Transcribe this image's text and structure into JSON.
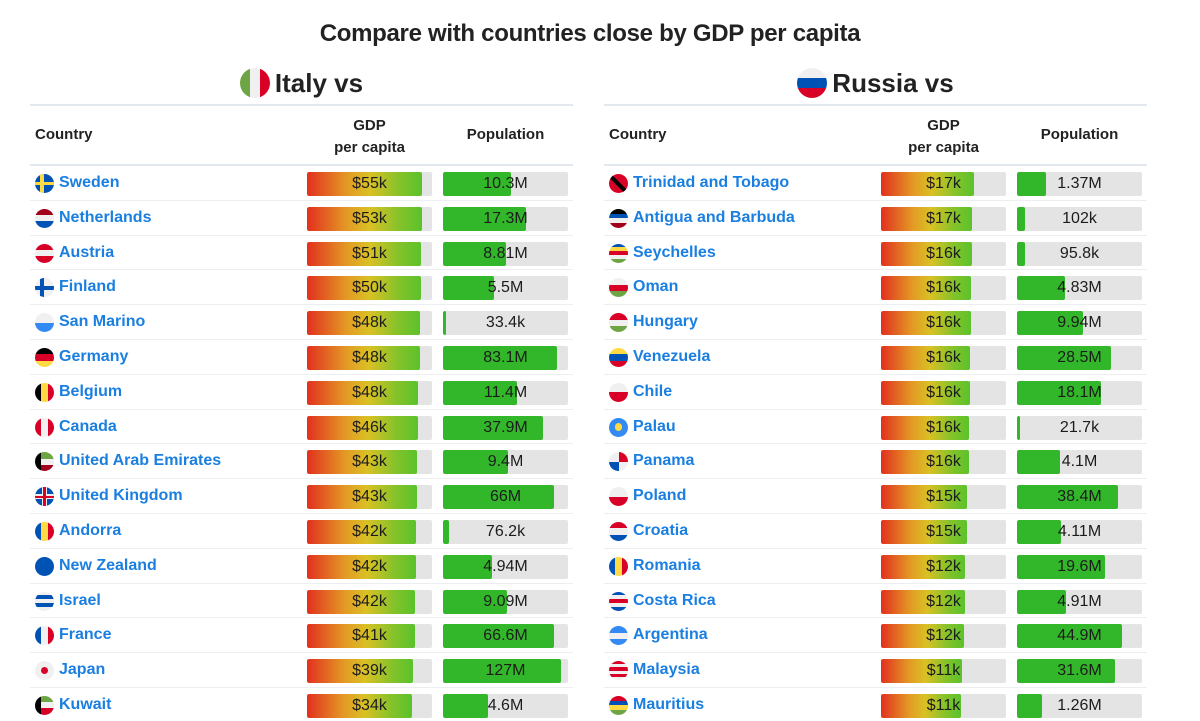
{
  "title": "Compare with countries close by GDP per capita",
  "columns": {
    "country": "Country",
    "gdp_line1": "GDP",
    "gdp_line2": "per capita",
    "population": "Population"
  },
  "chart_data": [
    {
      "type": "table",
      "title": "Italy vs",
      "flag": "italy-flag-icon",
      "columns": [
        "Country",
        "GDP per capita",
        "Population"
      ],
      "rows": [
        {
          "country": "Sweden",
          "flag": "sweden-flag-icon",
          "gdp": "$55k",
          "gdp_fill": 0.92,
          "population": "10.3M",
          "pop_fill": 0.54
        },
        {
          "country": "Netherlands",
          "flag": "netherlands-flag-icon",
          "gdp": "$53k",
          "gdp_fill": 0.92,
          "population": "17.3M",
          "pop_fill": 0.66
        },
        {
          "country": "Austria",
          "flag": "austria-flag-icon",
          "gdp": "$51k",
          "gdp_fill": 0.91,
          "population": "8.81M",
          "pop_fill": 0.5
        },
        {
          "country": "Finland",
          "flag": "finland-flag-icon",
          "gdp": "$50k",
          "gdp_fill": 0.91,
          "population": "5.5M",
          "pop_fill": 0.41
        },
        {
          "country": "San Marino",
          "flag": "san-marino-flag-icon",
          "gdp": "$48k",
          "gdp_fill": 0.9,
          "population": "33.4k",
          "pop_fill": 0.02
        },
        {
          "country": "Germany",
          "flag": "germany-flag-icon",
          "gdp": "$48k",
          "gdp_fill": 0.9,
          "population": "83.1M",
          "pop_fill": 0.91
        },
        {
          "country": "Belgium",
          "flag": "belgium-flag-icon",
          "gdp": "$48k",
          "gdp_fill": 0.89,
          "population": "11.4M",
          "pop_fill": 0.59
        },
        {
          "country": "Canada",
          "flag": "canada-flag-icon",
          "gdp": "$46k",
          "gdp_fill": 0.89,
          "population": "37.9M",
          "pop_fill": 0.8
        },
        {
          "country": "United Arab Emirates",
          "flag": "uae-flag-icon",
          "gdp": "$43k",
          "gdp_fill": 0.88,
          "population": "9.4M",
          "pop_fill": 0.52
        },
        {
          "country": "United Kingdom",
          "flag": "united-kingdom-flag-icon",
          "gdp": "$43k",
          "gdp_fill": 0.88,
          "population": "66M",
          "pop_fill": 0.89
        },
        {
          "country": "Andorra",
          "flag": "andorra-flag-icon",
          "gdp": "$42k",
          "gdp_fill": 0.87,
          "population": "76.2k",
          "pop_fill": 0.05
        },
        {
          "country": "New Zealand",
          "flag": "new-zealand-flag-icon",
          "gdp": "$42k",
          "gdp_fill": 0.87,
          "population": "4.94M",
          "pop_fill": 0.39
        },
        {
          "country": "Israel",
          "flag": "israel-flag-icon",
          "gdp": "$42k",
          "gdp_fill": 0.86,
          "population": "9.09M",
          "pop_fill": 0.51
        },
        {
          "country": "France",
          "flag": "france-flag-icon",
          "gdp": "$41k",
          "gdp_fill": 0.86,
          "population": "66.6M",
          "pop_fill": 0.89
        },
        {
          "country": "Japan",
          "flag": "japan-flag-icon",
          "gdp": "$39k",
          "gdp_fill": 0.85,
          "population": "127M",
          "pop_fill": 0.94
        },
        {
          "country": "Kuwait",
          "flag": "kuwait-flag-icon",
          "gdp": "$34k",
          "gdp_fill": 0.84,
          "population": "4.6M",
          "pop_fill": 0.36
        }
      ]
    },
    {
      "type": "table",
      "title": "Russia vs",
      "flag": "russia-flag-icon",
      "columns": [
        "Country",
        "GDP per capita",
        "Population"
      ],
      "rows": [
        {
          "country": "Trinidad and Tobago",
          "flag": "trinidad-and-tobago-flag-icon",
          "gdp": "$17k",
          "gdp_fill": 0.74,
          "population": "1.37M",
          "pop_fill": 0.23
        },
        {
          "country": "Antigua and Barbuda",
          "flag": "antigua-and-barbuda-flag-icon",
          "gdp": "$17k",
          "gdp_fill": 0.73,
          "population": "102k",
          "pop_fill": 0.06
        },
        {
          "country": "Seychelles",
          "flag": "seychelles-flag-icon",
          "gdp": "$16k",
          "gdp_fill": 0.73,
          "population": "95.8k",
          "pop_fill": 0.06
        },
        {
          "country": "Oman",
          "flag": "oman-flag-icon",
          "gdp": "$16k",
          "gdp_fill": 0.72,
          "population": "4.83M",
          "pop_fill": 0.38
        },
        {
          "country": "Hungary",
          "flag": "hungary-flag-icon",
          "gdp": "$16k",
          "gdp_fill": 0.72,
          "population": "9.94M",
          "pop_fill": 0.53
        },
        {
          "country": "Venezuela",
          "flag": "venezuela-flag-icon",
          "gdp": "$16k",
          "gdp_fill": 0.71,
          "population": "28.5M",
          "pop_fill": 0.75
        },
        {
          "country": "Chile",
          "flag": "chile-flag-icon",
          "gdp": "$16k",
          "gdp_fill": 0.71,
          "population": "18.1M",
          "pop_fill": 0.67
        },
        {
          "country": "Palau",
          "flag": "palau-flag-icon",
          "gdp": "$16k",
          "gdp_fill": 0.7,
          "population": "21.7k",
          "pop_fill": 0.02
        },
        {
          "country": "Panama",
          "flag": "panama-flag-icon",
          "gdp": "$16k",
          "gdp_fill": 0.7,
          "population": "4.1M",
          "pop_fill": 0.34
        },
        {
          "country": "Poland",
          "flag": "poland-flag-icon",
          "gdp": "$15k",
          "gdp_fill": 0.69,
          "population": "38.4M",
          "pop_fill": 0.81
        },
        {
          "country": "Croatia",
          "flag": "croatia-flag-icon",
          "gdp": "$15k",
          "gdp_fill": 0.69,
          "population": "4.11M",
          "pop_fill": 0.35
        },
        {
          "country": "Romania",
          "flag": "romania-flag-icon",
          "gdp": "$12k",
          "gdp_fill": 0.67,
          "population": "19.6M",
          "pop_fill": 0.7
        },
        {
          "country": "Costa Rica",
          "flag": "costa-rica-flag-icon",
          "gdp": "$12k",
          "gdp_fill": 0.67,
          "population": "4.91M",
          "pop_fill": 0.39
        },
        {
          "country": "Argentina",
          "flag": "argentina-flag-icon",
          "gdp": "$12k",
          "gdp_fill": 0.66,
          "population": "44.9M",
          "pop_fill": 0.84
        },
        {
          "country": "Malaysia",
          "flag": "malaysia-flag-icon",
          "gdp": "$11k",
          "gdp_fill": 0.65,
          "population": "31.6M",
          "pop_fill": 0.78
        },
        {
          "country": "Mauritius",
          "flag": "mauritius-flag-icon",
          "gdp": "$11k",
          "gdp_fill": 0.64,
          "population": "1.26M",
          "pop_fill": 0.2
        }
      ]
    }
  ],
  "flags": {
    "italy-flag-icon": {
      "dir": "v",
      "colors": [
        "#6da544",
        "#f0f0f0",
        "#d80027"
      ]
    },
    "russia-flag-icon": {
      "dir": "h",
      "colors": [
        "#f0f0f0",
        "#0052b4",
        "#d80027"
      ]
    },
    "sweden-flag-icon": {
      "dir": "cross",
      "colors": [
        "#0052b4",
        "#ffda44"
      ]
    },
    "netherlands-flag-icon": {
      "dir": "h",
      "colors": [
        "#a2001d",
        "#f0f0f0",
        "#0052b4"
      ]
    },
    "austria-flag-icon": {
      "dir": "h",
      "colors": [
        "#d80027",
        "#f0f0f0",
        "#d80027"
      ]
    },
    "finland-flag-icon": {
      "dir": "cross",
      "colors": [
        "#f0f0f0",
        "#0052b4"
      ]
    },
    "san-marino-flag-icon": {
      "dir": "h",
      "colors": [
        "#f0f0f0",
        "#338af3"
      ]
    },
    "germany-flag-icon": {
      "dir": "h",
      "colors": [
        "#000000",
        "#d80027",
        "#ffda44"
      ]
    },
    "belgium-flag-icon": {
      "dir": "v",
      "colors": [
        "#000000",
        "#ffda44",
        "#d80027"
      ]
    },
    "canada-flag-icon": {
      "dir": "v",
      "colors": [
        "#d80027",
        "#f0f0f0",
        "#d80027"
      ]
    },
    "uae-flag-icon": {
      "dir": "uae",
      "colors": [
        "#a2001d",
        "#6da544",
        "#f0f0f0",
        "#000000"
      ]
    },
    "united-kingdom-flag-icon": {
      "dir": "uk",
      "colors": [
        "#0052b4",
        "#f0f0f0",
        "#d80027"
      ]
    },
    "andorra-flag-icon": {
      "dir": "v",
      "colors": [
        "#0052b4",
        "#ffda44",
        "#d80027"
      ]
    },
    "new-zealand-flag-icon": {
      "dir": "h",
      "colors": [
        "#0052b4",
        "#0052b4"
      ]
    },
    "israel-flag-icon": {
      "dir": "h",
      "colors": [
        "#f0f0f0",
        "#0052b4",
        "#f0f0f0",
        "#0052b4",
        "#f0f0f0"
      ]
    },
    "france-flag-icon": {
      "dir": "v",
      "colors": [
        "#0052b4",
        "#f0f0f0",
        "#d80027"
      ]
    },
    "japan-flag-icon": {
      "dir": "dot",
      "colors": [
        "#f0f0f0",
        "#d80027"
      ]
    },
    "kuwait-flag-icon": {
      "dir": "uae",
      "colors": [
        "#d80027",
        "#6da544",
        "#f0f0f0",
        "#000000"
      ]
    },
    "trinidad-and-tobago-flag-icon": {
      "dir": "diag",
      "colors": [
        "#d80027",
        "#000000"
      ]
    },
    "antigua-and-barbuda-flag-icon": {
      "dir": "h",
      "colors": [
        "#000000",
        "#0052b4",
        "#f0f0f0",
        "#a2001d"
      ]
    },
    "seychelles-flag-icon": {
      "dir": "h",
      "colors": [
        "#0052b4",
        "#ffda44",
        "#d80027",
        "#f0f0f0",
        "#6da544"
      ]
    },
    "oman-flag-icon": {
      "dir": "h",
      "colors": [
        "#f0f0f0",
        "#d80027",
        "#6da544"
      ]
    },
    "hungary-flag-icon": {
      "dir": "h",
      "colors": [
        "#d80027",
        "#f0f0f0",
        "#6da544"
      ]
    },
    "venezuela-flag-icon": {
      "dir": "h",
      "colors": [
        "#ffda44",
        "#0052b4",
        "#d80027"
      ]
    },
    "chile-flag-icon": {
      "dir": "h",
      "colors": [
        "#f0f0f0",
        "#d80027"
      ]
    },
    "palau-flag-icon": {
      "dir": "dot",
      "colors": [
        "#338af3",
        "#ffda44"
      ]
    },
    "panama-flag-icon": {
      "dir": "quad",
      "colors": [
        "#f0f0f0",
        "#d80027",
        "#0052b4",
        "#f0f0f0"
      ]
    },
    "poland-flag-icon": {
      "dir": "h",
      "colors": [
        "#f0f0f0",
        "#d80027"
      ]
    },
    "croatia-flag-icon": {
      "dir": "h",
      "colors": [
        "#d80027",
        "#f0f0f0",
        "#0052b4"
      ]
    },
    "romania-flag-icon": {
      "dir": "v",
      "colors": [
        "#0052b4",
        "#ffda44",
        "#d80027"
      ]
    },
    "costa-rica-flag-icon": {
      "dir": "h",
      "colors": [
        "#0052b4",
        "#f0f0f0",
        "#d80027",
        "#f0f0f0",
        "#0052b4"
      ]
    },
    "argentina-flag-icon": {
      "dir": "h",
      "colors": [
        "#338af3",
        "#f0f0f0",
        "#338af3"
      ]
    },
    "malaysia-flag-icon": {
      "dir": "h",
      "colors": [
        "#d80027",
        "#f0f0f0",
        "#d80027",
        "#f0f0f0",
        "#d80027",
        "#f0f0f0"
      ]
    },
    "mauritius-flag-icon": {
      "dir": "h",
      "colors": [
        "#d80027",
        "#0052b4",
        "#ffda44",
        "#6da544"
      ]
    }
  }
}
